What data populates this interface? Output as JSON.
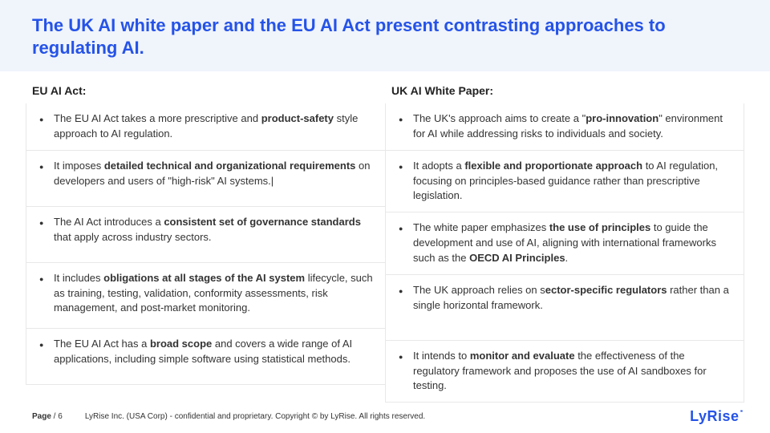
{
  "colors": {
    "accent": "#2553e8",
    "header_bg": "#f0f4fb",
    "border": "#e8e8e8",
    "text": "#333333"
  },
  "title": "The UK AI white paper and the EU AI Act present contrasting approaches to regulating AI.",
  "left": {
    "header": "EU AI Act:",
    "items": [
      "The EU AI Act takes a more prescriptive and <b>product-safety</b> style approach to AI regulation.",
      "It imposes <b>detailed technical and organizational requirements</b> on developers and users of \"high-risk\" AI systems.|",
      "The AI Act introduces a <b>consistent set of governance standards</b> that apply across industry sectors.",
      "It includes <b>obligations at all stages of the AI system</b> lifecycle, such as training, testing, validation, conformity assessments, risk management, and post-market monitoring.",
      "The EU AI Act has a <b>broad scope</b> and covers a wide range of AI applications, including simple software using statistical methods."
    ]
  },
  "right": {
    "header": "UK AI White Paper:",
    "items": [
      "The UK's approach aims to create a \"<b>pro-innovation</b>\" environment for AI while addressing risks to individuals and society.",
      "It adopts a <b>flexible and proportionate approach</b> to AI regulation, focusing on principles-based guidance rather than prescriptive legislation.",
      "The white paper emphasizes <b>the use of principles</b> to guide the development and use of AI, aligning with international frameworks such as the <b>OECD AI Principles</b>.",
      "The UK approach relies on s<b>ector-specific regulators</b> rather than a single horizontal framework.",
      "It intends to <b>monitor and evaluate</b> the effectiveness of the regulatory framework and proposes the use of AI sandboxes for testing."
    ]
  },
  "footer": {
    "page_label": "Page",
    "page_sep": " / ",
    "page_num": "6",
    "copyright": "LyRise Inc. (USA Corp) - confidential and proprietary. Copyright © by LyRise. All rights reserved.",
    "logo": "LyRise"
  },
  "row_heights": [
    "58px",
    "70px",
    "70px",
    "82px",
    "70px"
  ]
}
